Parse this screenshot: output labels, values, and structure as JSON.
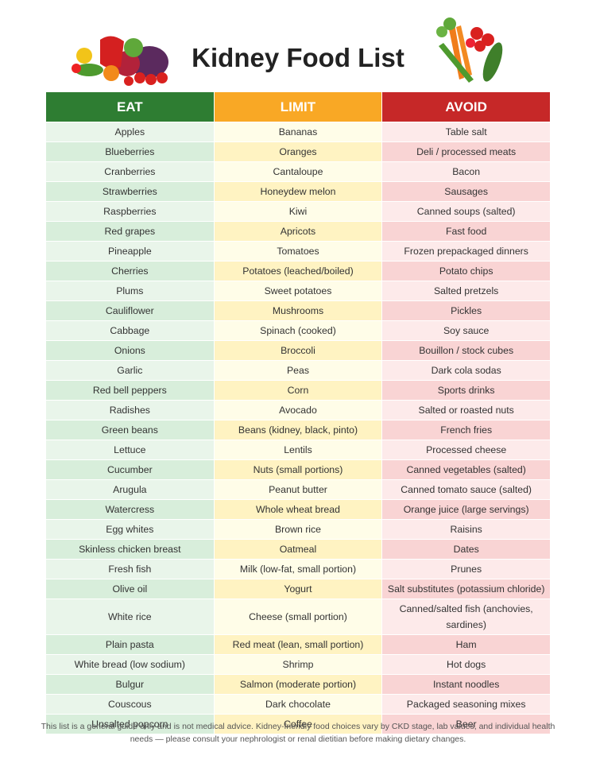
{
  "header": {
    "title": "Kidney Food List"
  },
  "table": {
    "columns": [
      "EAT",
      "LIMIT",
      "AVOID"
    ],
    "rows": [
      [
        "Apples",
        "Bananas",
        "Table salt"
      ],
      [
        "Blueberries",
        "Oranges",
        "Deli / processed meats"
      ],
      [
        "Cranberries",
        "Cantaloupe",
        "Bacon"
      ],
      [
        "Strawberries",
        "Honeydew melon",
        "Sausages"
      ],
      [
        "Raspberries",
        "Kiwi",
        "Canned soups (salted)"
      ],
      [
        "Red grapes",
        "Apricots",
        "Fast food"
      ],
      [
        "Pineapple",
        "Tomatoes",
        "Frozen prepackaged dinners"
      ],
      [
        "Cherries",
        "Potatoes (leached/boiled)",
        "Potato chips"
      ],
      [
        "Plums",
        "Sweet potatoes",
        "Salted pretzels"
      ],
      [
        "Cauliflower",
        "Mushrooms",
        "Pickles"
      ],
      [
        "Cabbage",
        "Spinach (cooked)",
        "Soy sauce"
      ],
      [
        "Onions",
        "Broccoli",
        "Bouillon / stock cubes"
      ],
      [
        "Garlic",
        "Peas",
        "Dark cola sodas"
      ],
      [
        "Red bell peppers",
        "Corn",
        "Sports drinks"
      ],
      [
        "Radishes",
        "Avocado",
        "Salted or roasted nuts"
      ],
      [
        "Green beans",
        "Beans (kidney, black, pinto)",
        "French fries"
      ],
      [
        "Lettuce",
        "Lentils",
        "Processed cheese"
      ],
      [
        "Cucumber",
        "Nuts (small portions)",
        "Canned vegetables (salted)"
      ],
      [
        "Arugula",
        "Peanut butter",
        "Canned tomato sauce (salted)"
      ],
      [
        "Watercress",
        "Whole wheat bread",
        "Orange juice (large servings)"
      ],
      [
        "Egg whites",
        "Brown rice",
        "Raisins"
      ],
      [
        "Skinless chicken breast",
        "Oatmeal",
        "Dates"
      ],
      [
        "Fresh fish",
        "Milk (low-fat, small portion)",
        "Prunes"
      ],
      [
        "Olive oil",
        "Yogurt",
        "Salt substitutes (potassium chloride)"
      ],
      [
        "White rice",
        "Cheese (small portion)",
        "Canned/salted fish (anchovies, sardines)"
      ],
      [
        "Plain pasta",
        "Red meat (lean, small portion)",
        "Ham"
      ],
      [
        "White bread (low sodium)",
        "Shrimp",
        "Hot dogs"
      ],
      [
        "Bulgur",
        "Salmon (moderate portion)",
        "Instant noodles"
      ],
      [
        "Couscous",
        "Dark chocolate",
        "Packaged seasoning mixes"
      ],
      [
        "Unsalted popcorn",
        "Coffee",
        "Beer"
      ]
    ]
  },
  "footer": "This list is a general guide only and is not medical advice. Kidney-friendly food choices vary by CKD stage, lab values, and individual health needs — please consult your nephrologist or renal dietitian before making dietary changes."
}
